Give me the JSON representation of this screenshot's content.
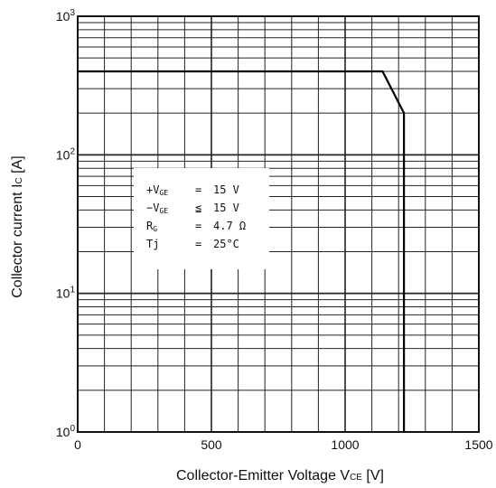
{
  "chart_data": {
    "type": "line",
    "xlabel": "Collector-Emitter Voltage V",
    "xlabel_sub": "CE",
    "xlabel_unit": " [V]",
    "ylabel": "Collector current I",
    "ylabel_sub": "C",
    "ylabel_unit": " [A]",
    "xlim": [
      0,
      1500
    ],
    "ylim": [
      1,
      1000
    ],
    "yscale": "log",
    "grid": true,
    "x_ticks": [
      {
        "value": 0,
        "label": "0"
      },
      {
        "value": 500,
        "label": "500"
      },
      {
        "value": 1000,
        "label": "1000"
      },
      {
        "value": 1500,
        "label": "1500"
      }
    ],
    "y_ticks": [
      {
        "value": 1,
        "base": "10",
        "exp": "0"
      },
      {
        "value": 10,
        "base": "10",
        "exp": "1"
      },
      {
        "value": 100,
        "base": "10",
        "exp": "2"
      },
      {
        "value": 1000,
        "base": "10",
        "exp": "3"
      }
    ],
    "series": [
      {
        "x": [
          0,
          1140,
          1220,
          1220
        ],
        "y": [
          400,
          400,
          200,
          1
        ]
      }
    ],
    "annotation": {
      "lines": [
        {
          "sign": "+",
          "sym": "V",
          "sub": "GE",
          "rel": "=",
          "val": "15 V"
        },
        {
          "sign": "−",
          "sym": "V",
          "sub": "GE",
          "rel": "≦",
          "val": "15 V"
        },
        {
          "sign": "",
          "sym": "R",
          "sub": "G",
          "rel": "=",
          "val": "4.7 Ω"
        },
        {
          "sign": "",
          "sym": "Tj",
          "sub": "",
          "rel": "=",
          "val": "25°C"
        }
      ]
    }
  }
}
